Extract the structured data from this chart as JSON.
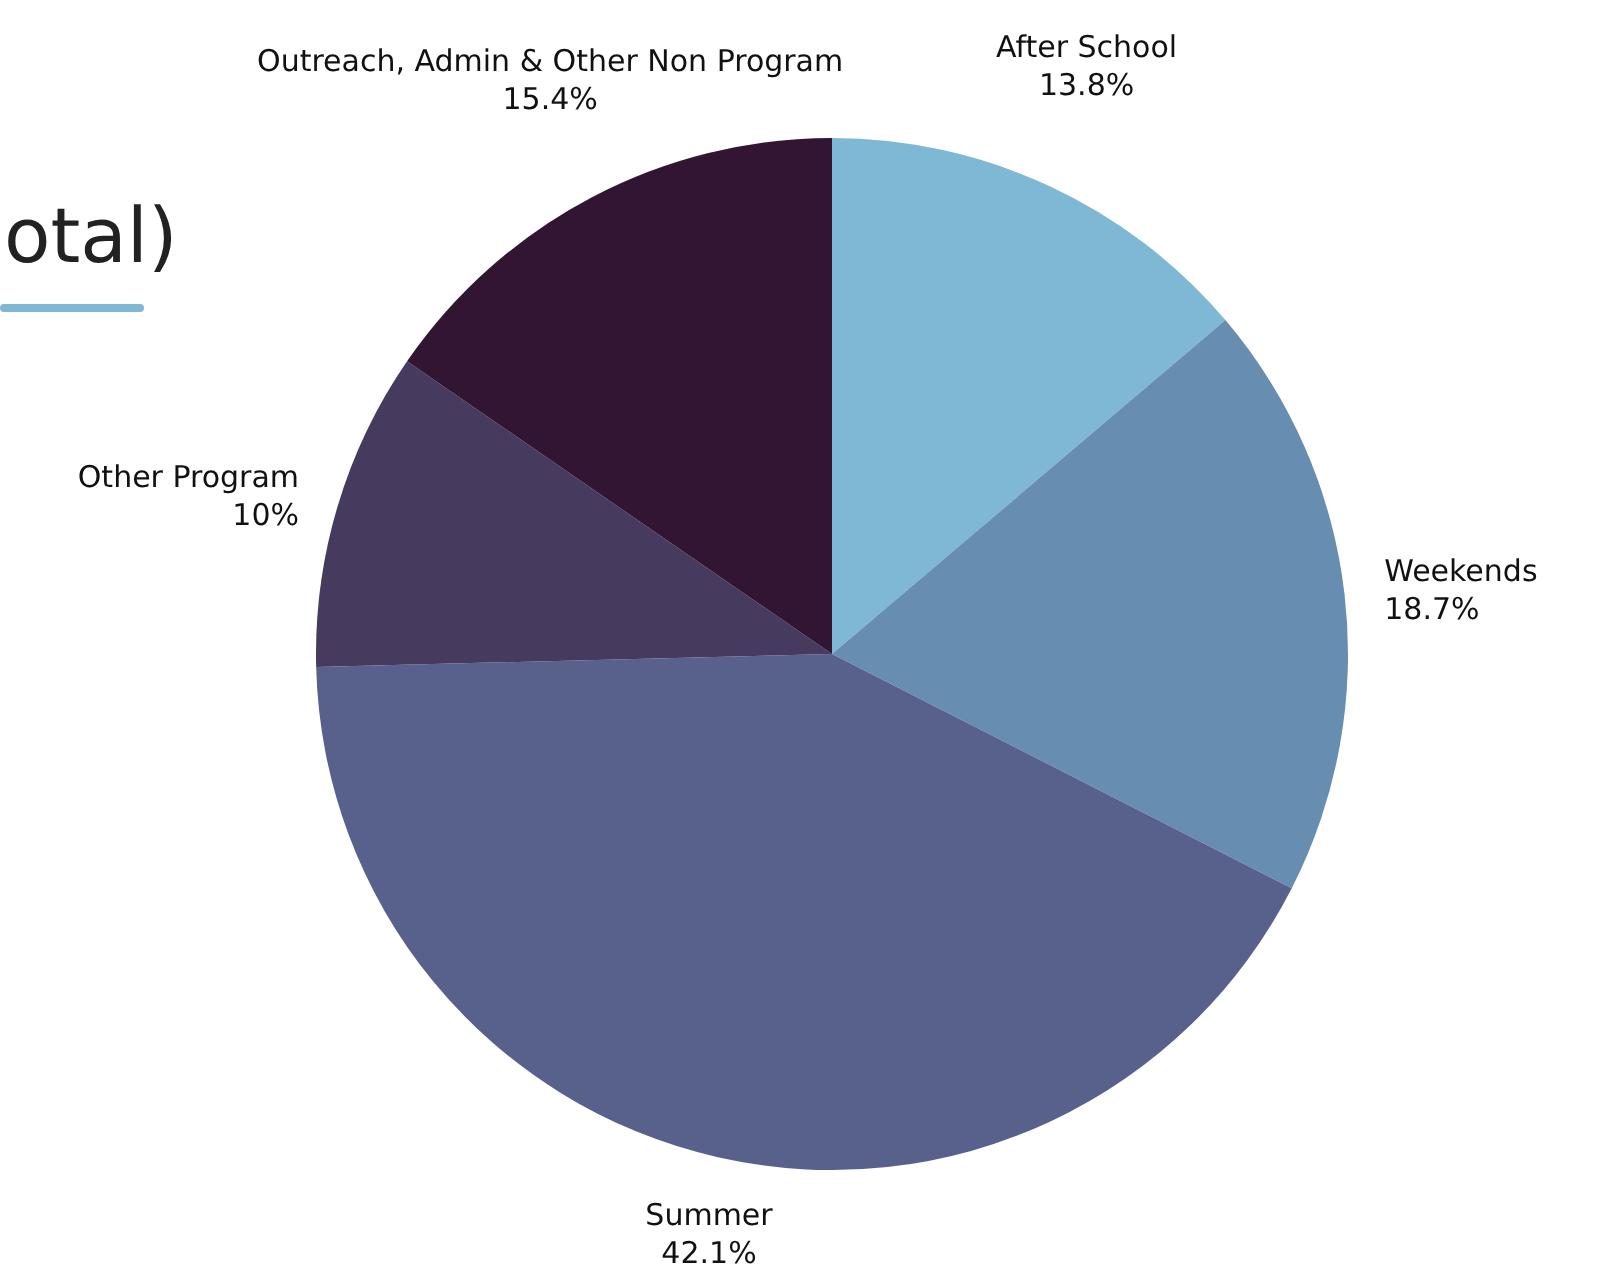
{
  "chart_data": {
    "type": "pie",
    "title": "otal)",
    "categories": [
      "After School",
      "Weekends",
      "Summer",
      "Other Program",
      "Outreach, Admin & Other Non Program"
    ],
    "values": [
      13.8,
      18.7,
      42.1,
      10,
      15.4
    ],
    "value_labels": [
      "13.8%",
      "18.7%",
      "42.1%",
      "10%",
      "15.4%"
    ],
    "colors": [
      "#7fb8d4",
      "#678db1",
      "#58618c",
      "#463a5f",
      "#311533"
    ],
    "legend": false
  }
}
